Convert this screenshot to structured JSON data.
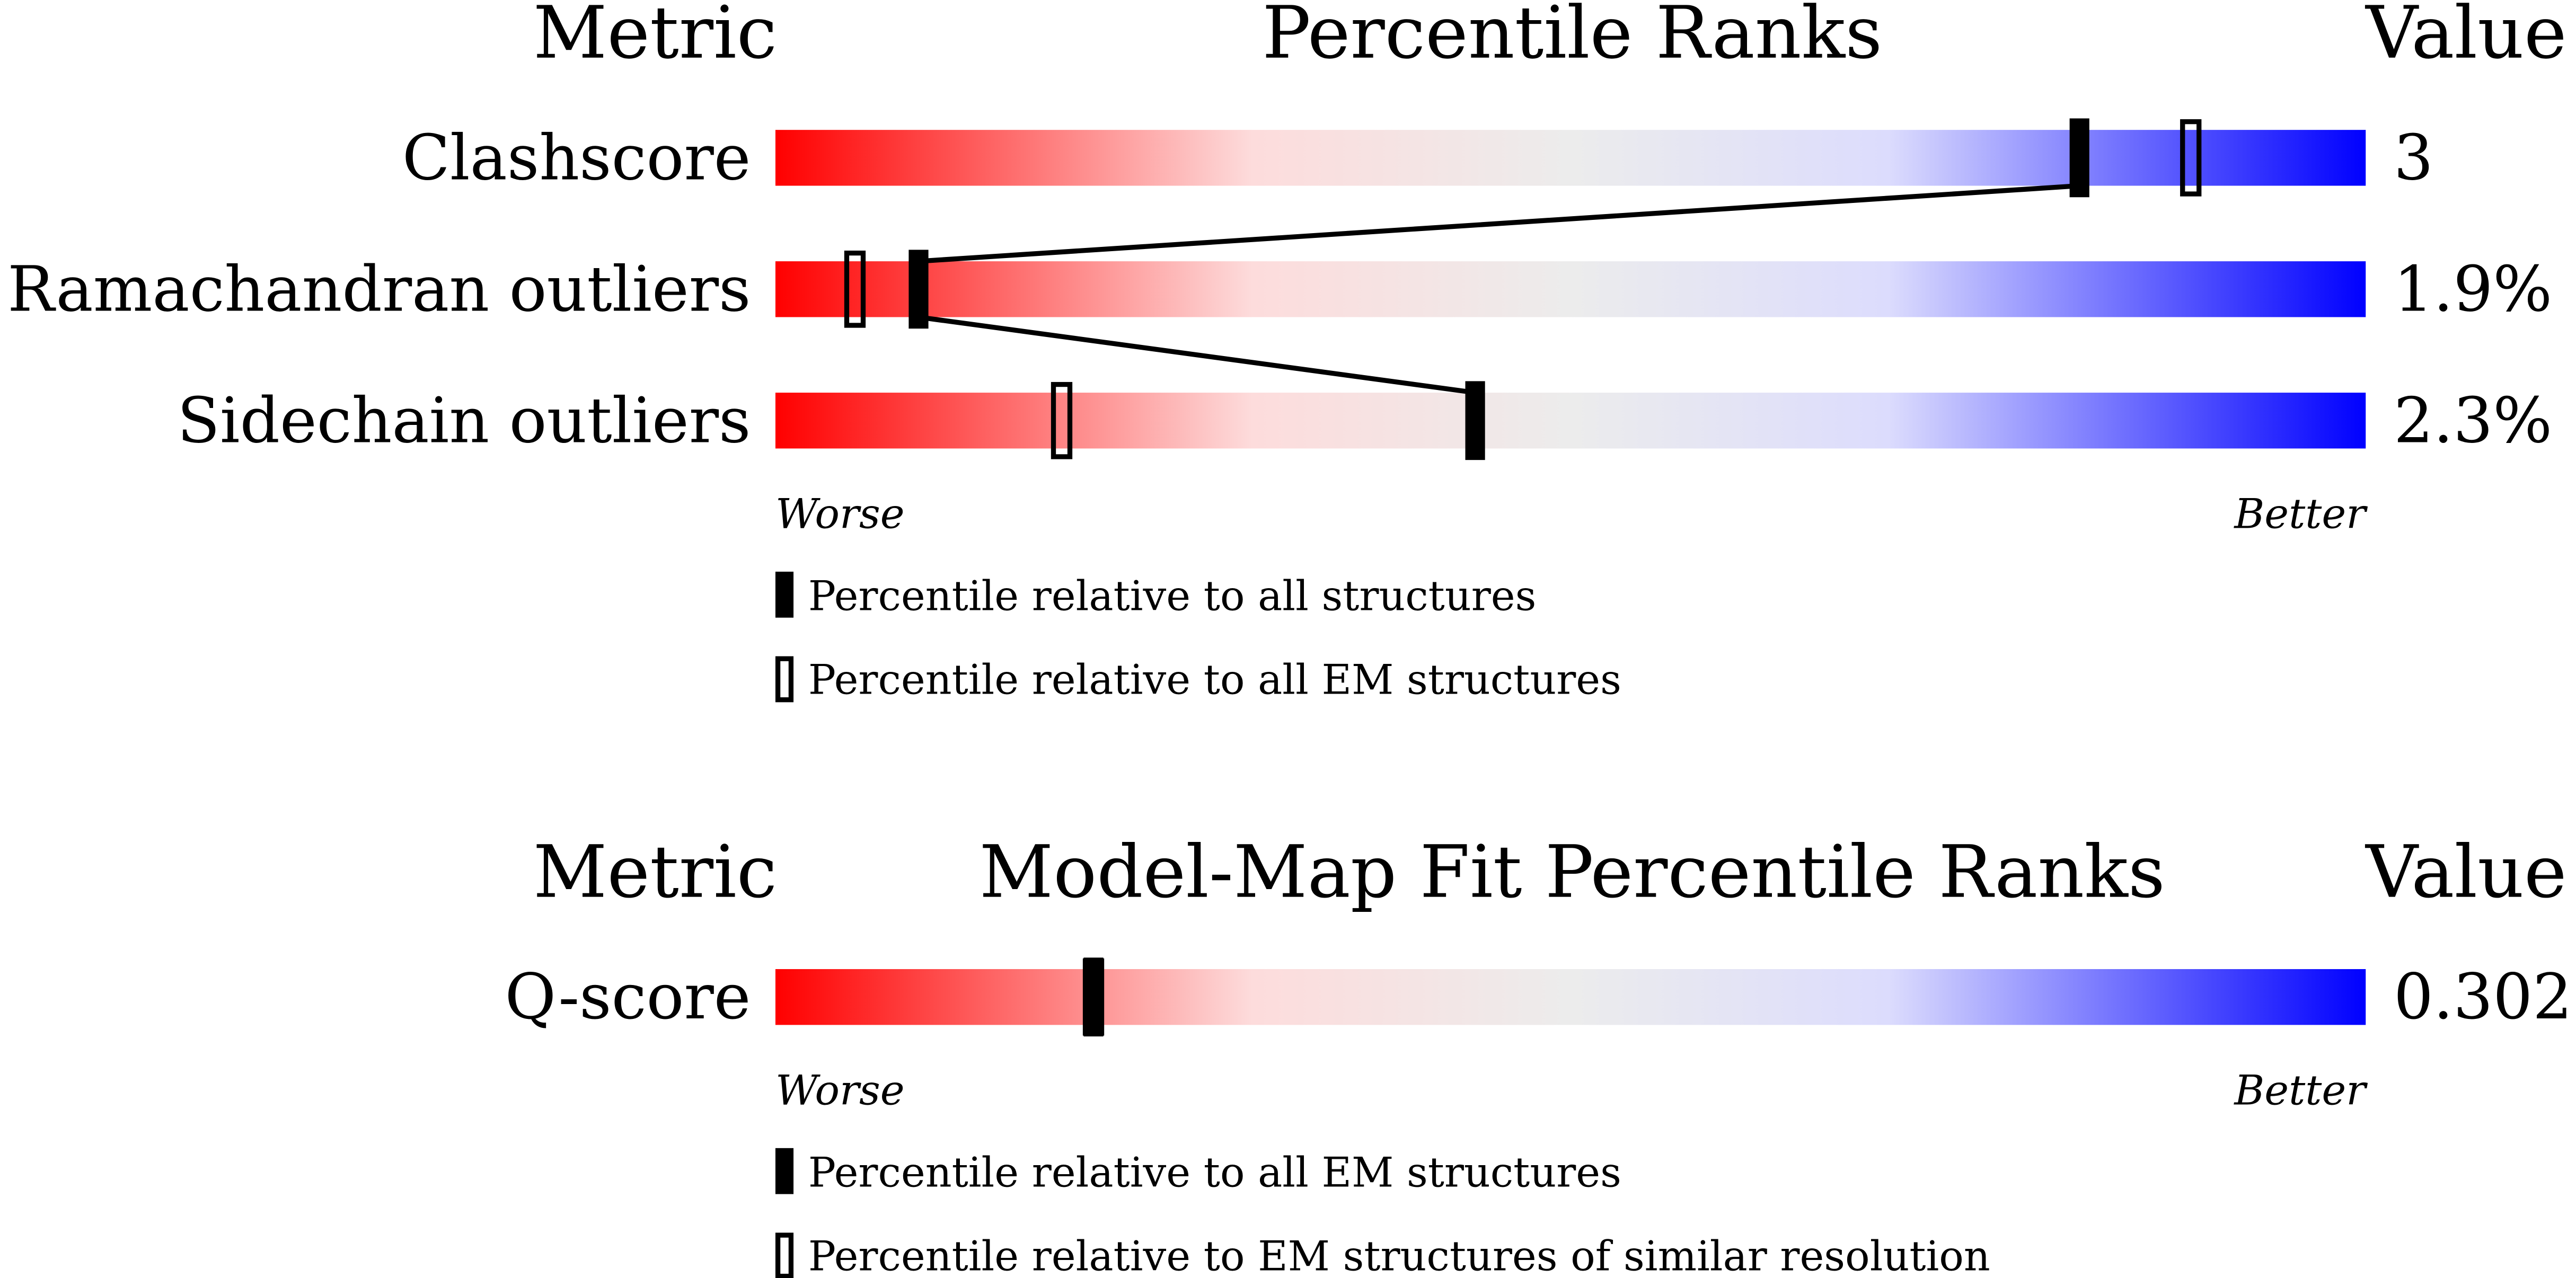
{
  "panels": [
    {
      "headers": {
        "metric": "Metric",
        "title": "Percentile Ranks",
        "value": "Value"
      },
      "rows": [
        {
          "metric": "Clashscore",
          "value": "3",
          "percentile_filled": 82,
          "percentile_open": 89
        },
        {
          "metric": "Ramachandran outliers",
          "value": "1.9%",
          "percentile_filled": 9,
          "percentile_open": 5
        },
        {
          "metric": "Sidechain outliers",
          "value": "2.3%",
          "percentile_filled": 44,
          "percentile_open": 18
        }
      ],
      "scale": {
        "worse": "Worse",
        "better": "Better"
      },
      "legend": {
        "filled": "Percentile relative to all structures",
        "open": "Percentile relative to all EM structures"
      },
      "xlim": [
        0,
        100
      ]
    },
    {
      "headers": {
        "metric": "Metric",
        "title": "Model-Map Fit Percentile Ranks",
        "value": "Value"
      },
      "rows": [
        {
          "metric": "Q-score",
          "value": "0.302",
          "percentile_filled": 20,
          "percentile_open": 20
        }
      ],
      "scale": {
        "worse": "Worse",
        "better": "Better"
      },
      "legend": {
        "filled": "Percentile relative to all EM structures",
        "open": "Percentile relative to EM structures of similar resolution"
      },
      "xlim": [
        0,
        100
      ]
    }
  ]
}
